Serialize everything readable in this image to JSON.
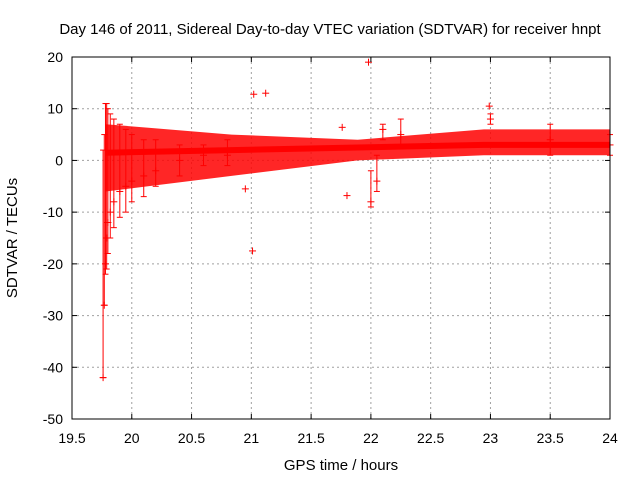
{
  "chart_data": {
    "type": "scatter",
    "title": "Day 146 of 2011, Sidereal Day-to-day VTEC variation (SDTVAR) for receiver hnpt",
    "xlabel": "GPS time / hours",
    "ylabel": "SDTVAR / TECUs",
    "xlim": [
      19.5,
      24
    ],
    "ylim": [
      -50,
      20
    ],
    "xticks": [
      "19.5",
      "20",
      "20.5",
      "21",
      "21.5",
      "22",
      "22.5",
      "23",
      "23.5",
      "24"
    ],
    "yticks": [
      "-50",
      "-40",
      "-30",
      "-20",
      "-10",
      "0",
      "10",
      "20"
    ],
    "grid": true,
    "series_color": "#ff0000",
    "series": [
      {
        "name": "SDTVAR",
        "marker": "+",
        "with_error_bars": true,
        "points": [
          {
            "x": 19.76,
            "y": -42,
            "err_lo": -42,
            "err_hi": 2
          },
          {
            "x": 19.77,
            "y": -28,
            "err_lo": -28,
            "err_hi": 5
          },
          {
            "x": 19.78,
            "y": -20,
            "err_lo": -22,
            "err_hi": 11
          },
          {
            "x": 19.79,
            "y": -15,
            "err_lo": -21,
            "err_hi": 11
          },
          {
            "x": 19.8,
            "y": -12,
            "err_lo": -18,
            "err_hi": 10
          },
          {
            "x": 19.82,
            "y": -10,
            "err_lo": -15,
            "err_hi": 9
          },
          {
            "x": 19.85,
            "y": -8,
            "err_lo": -13,
            "err_hi": 8
          },
          {
            "x": 19.9,
            "y": -6,
            "err_lo": -11,
            "err_hi": 7
          },
          {
            "x": 19.95,
            "y": -5,
            "err_lo": -10,
            "err_hi": 6
          },
          {
            "x": 20.0,
            "y": -4,
            "err_lo": -8,
            "err_hi": 5
          },
          {
            "x": 20.1,
            "y": -3,
            "err_lo": -7,
            "err_hi": 4
          },
          {
            "x": 20.2,
            "y": -2,
            "err_lo": -5,
            "err_hi": 4
          },
          {
            "x": 20.4,
            "y": 0,
            "err_lo": -3,
            "err_hi": 3
          },
          {
            "x": 20.6,
            "y": 1,
            "err_lo": -1,
            "err_hi": 3
          },
          {
            "x": 20.8,
            "y": 1,
            "err_lo": -1,
            "err_hi": 4
          },
          {
            "x": 20.95,
            "y": -5.5,
            "err_lo": -5.5,
            "err_hi": -5.5
          },
          {
            "x": 21.01,
            "y": -17.5,
            "err_lo": -17.5,
            "err_hi": -17.5
          },
          {
            "x": 21.02,
            "y": 12.8,
            "err_lo": 12.8,
            "err_hi": 12.8
          },
          {
            "x": 21.12,
            "y": 13,
            "err_lo": 13,
            "err_hi": 13
          },
          {
            "x": 21.8,
            "y": -6.8,
            "err_lo": -6.8,
            "err_hi": -6.8
          },
          {
            "x": 21.76,
            "y": 6.4,
            "err_lo": 6.4,
            "err_hi": 6.4
          },
          {
            "x": 21.98,
            "y": 19,
            "err_lo": 19,
            "err_hi": 19
          },
          {
            "x": 22.0,
            "y": -8,
            "err_lo": -9,
            "err_hi": -2
          },
          {
            "x": 22.05,
            "y": -4,
            "err_lo": -6,
            "err_hi": 1
          },
          {
            "x": 22.1,
            "y": 6,
            "err_lo": 4,
            "err_hi": 7
          },
          {
            "x": 22.25,
            "y": 5,
            "err_lo": 3,
            "err_hi": 8
          },
          {
            "x": 22.99,
            "y": 10.5,
            "err_lo": 10.5,
            "err_hi": 10.5
          },
          {
            "x": 23.0,
            "y": 8,
            "err_lo": 7,
            "err_hi": 9
          },
          {
            "x": 23.5,
            "y": 4,
            "err_lo": 1,
            "err_hi": 7
          },
          {
            "x": 24.0,
            "y": 3,
            "err_lo": 1,
            "err_hi": 5
          }
        ],
        "bands": [
          {
            "x_start": 19.78,
            "x_end": 24.0,
            "y_center": [
              1.5,
              2,
              2.5,
              3,
              3
            ],
            "y_lo": [
              -6,
              -3,
              0,
              1,
              1
            ],
            "y_hi": [
              7,
              5,
              4,
              6,
              6
            ]
          }
        ]
      }
    ]
  }
}
